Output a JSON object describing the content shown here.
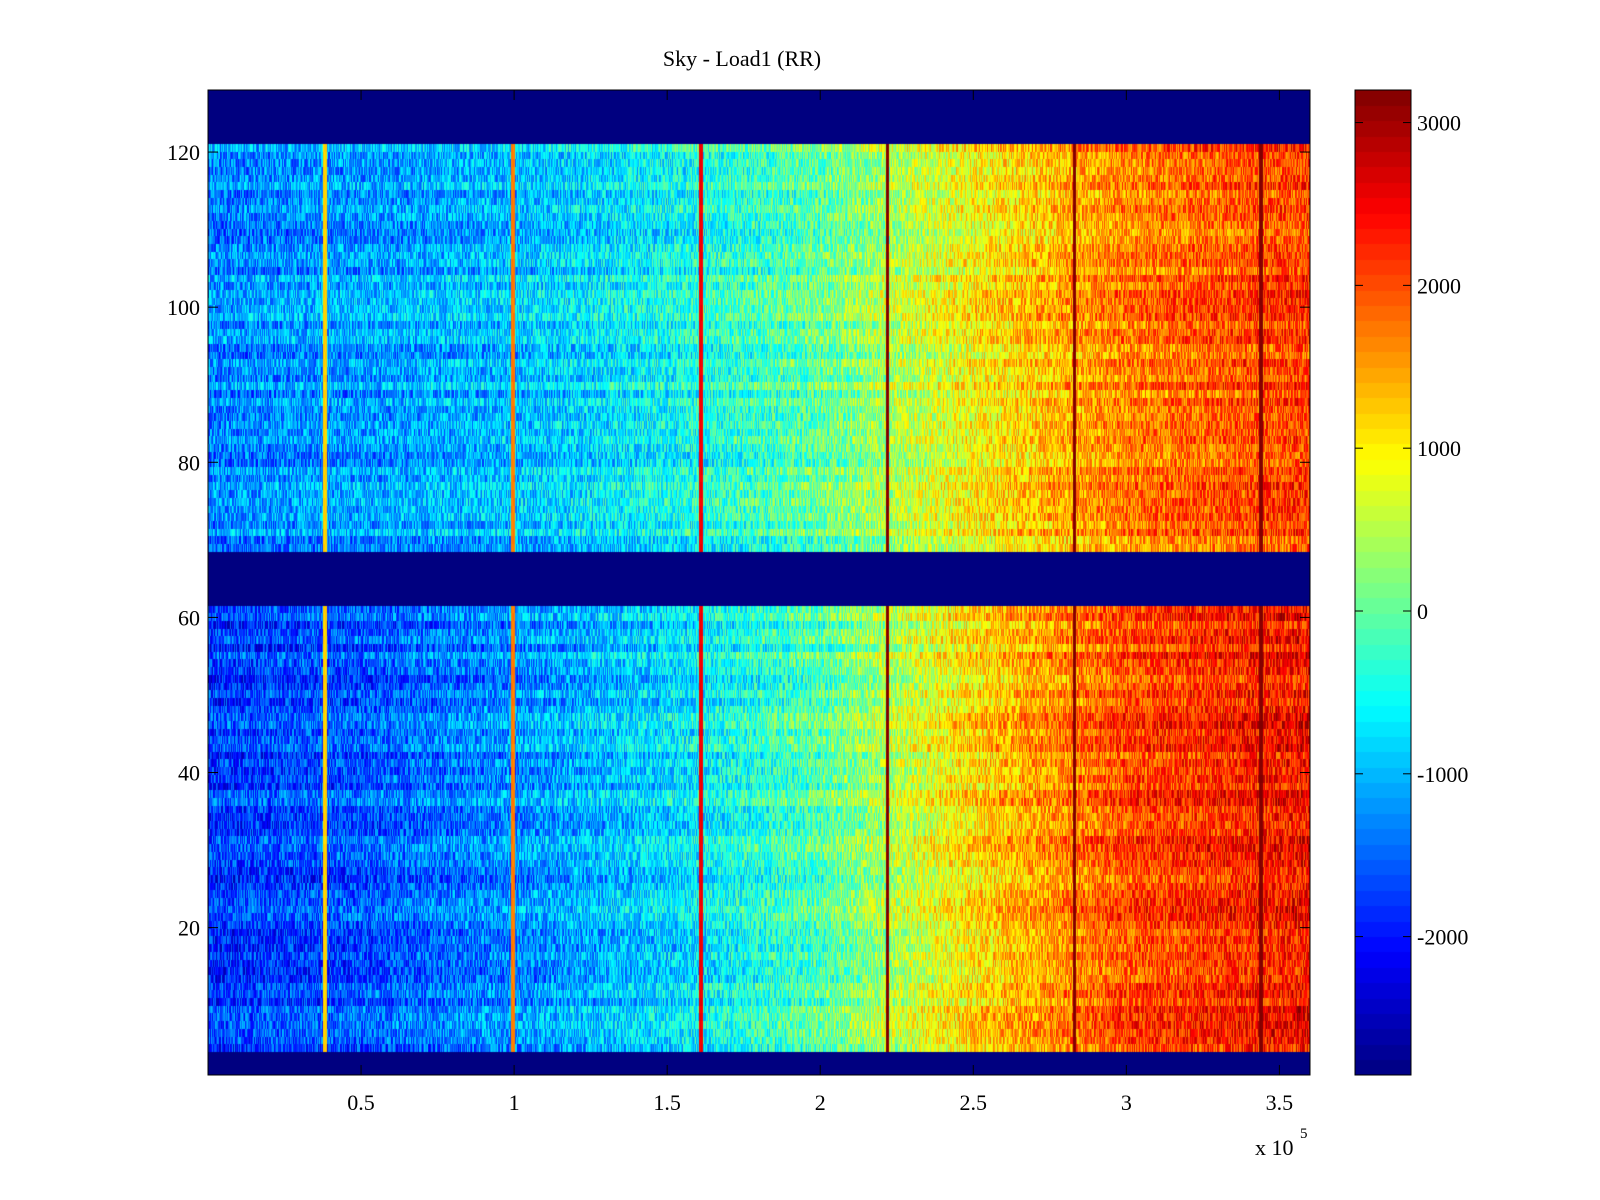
{
  "chart_data": {
    "type": "heatmap",
    "title": "Sky - Load1 (RR)",
    "xlabel": "",
    "ylabel": "",
    "x_exponent_label": "x 10",
    "x_exponent_power": "5",
    "xlim": [
      0.0,
      3.6
    ],
    "ylim": [
      1,
      128
    ],
    "x_ticks": [
      {
        "value": 0.5,
        "label": "0.5"
      },
      {
        "value": 1.0,
        "label": "1"
      },
      {
        "value": 1.5,
        "label": "1.5"
      },
      {
        "value": 2.0,
        "label": "2"
      },
      {
        "value": 2.5,
        "label": "2.5"
      },
      {
        "value": 3.0,
        "label": "3"
      },
      {
        "value": 3.5,
        "label": "3.5"
      }
    ],
    "y_ticks": [
      {
        "value": 20,
        "label": "20"
      },
      {
        "value": 40,
        "label": "40"
      },
      {
        "value": 60,
        "label": "60"
      },
      {
        "value": 80,
        "label": "80"
      },
      {
        "value": 100,
        "label": "100"
      },
      {
        "value": 120,
        "label": "120"
      }
    ],
    "colorbar": {
      "colormap": "jet",
      "range": [
        -2850,
        3200
      ],
      "ticks": [
        {
          "value": 3000,
          "label": "3000"
        },
        {
          "value": 2000,
          "label": "2000"
        },
        {
          "value": 1000,
          "label": "1000"
        },
        {
          "value": 0,
          "label": "0"
        },
        {
          "value": -1000,
          "label": "-1000"
        },
        {
          "value": -2000,
          "label": "-2000"
        }
      ]
    },
    "masked_value": -2850,
    "masked_row_bands": [
      [
        1,
        4
      ],
      [
        62,
        68
      ],
      [
        121,
        128
      ]
    ],
    "data_row_bands": [
      [
        4,
        62
      ],
      [
        68,
        121
      ]
    ],
    "trend": {
      "x": [
        0.0,
        0.5,
        1.0,
        1.5,
        2.0,
        2.5,
        3.0,
        3.6
      ],
      "value_upper_band": [
        -1300,
        -1150,
        -950,
        -550,
        0,
        950,
        1700,
        2100
      ],
      "value_lower_band": [
        -1800,
        -1600,
        -1250,
        -800,
        -100,
        1100,
        2000,
        2400
      ]
    },
    "vertical_stripes": [
      {
        "x": 0.383,
        "value": 1200
      },
      {
        "x": 0.995,
        "value": 1700
      },
      {
        "x": 1.61,
        "value": 2500
      },
      {
        "x": 2.22,
        "value": 3200
      },
      {
        "x": 2.83,
        "value": 3200
      },
      {
        "x": 3.44,
        "value": 3200
      }
    ]
  }
}
